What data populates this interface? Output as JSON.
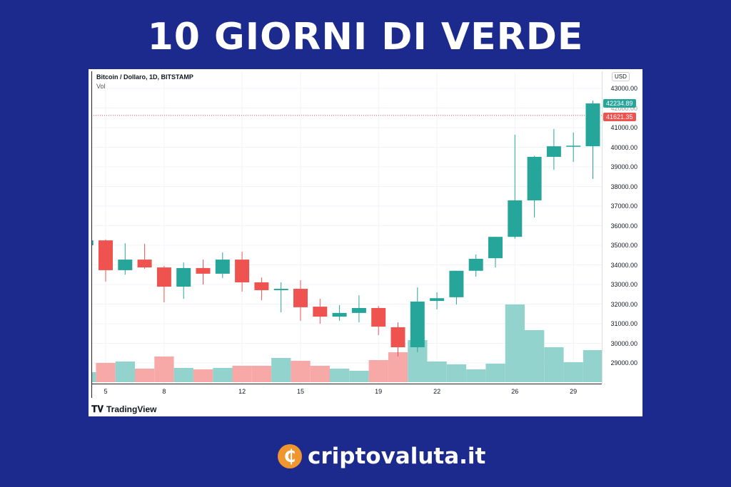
{
  "title": "10 GIORNI DI VERDE",
  "chart_data": {
    "type": "candlestick",
    "title": "Bitcoin / Dollaro, 1D, BITSTAMP",
    "volume_label": "Vol",
    "currency": "USD",
    "colors": {
      "up": "#26a69a",
      "down": "#ef5350",
      "up_vol": "#92d4cd",
      "down_vol": "#f7a9a7"
    },
    "ylim": [
      28000,
      43500
    ],
    "y_ticks": [
      "29000.00",
      "30000.00",
      "31000.00",
      "32000.00",
      "33000.00",
      "34000.00",
      "35000.00",
      "36000.00",
      "37000.00",
      "38000.00",
      "39000.00",
      "40000.00",
      "41000.00",
      "43000.00"
    ],
    "x_ticks": [
      {
        "day": 5,
        "label": "5"
      },
      {
        "day": 8,
        "label": "8"
      },
      {
        "day": 12,
        "label": "12"
      },
      {
        "day": 15,
        "label": "15"
      },
      {
        "day": 19,
        "label": "19"
      },
      {
        "day": 22,
        "label": "22"
      },
      {
        "day": 26,
        "label": "26"
      },
      {
        "day": 29,
        "label": "29"
      }
    ],
    "last_price": "42234.89",
    "hidden_tick": "42000.00",
    "price_line": "41621.35",
    "price_line_value": 41621.35,
    "candles": [
      {
        "day": 4,
        "o": 35000,
        "h": 35300,
        "c": 35250,
        "l": 34900,
        "v": 14
      },
      {
        "day": 5,
        "o": 35250,
        "h": 35300,
        "c": 33730,
        "l": 33150,
        "v": 27
      },
      {
        "day": 6,
        "o": 33730,
        "h": 35100,
        "c": 34270,
        "l": 33500,
        "v": 29
      },
      {
        "day": 7,
        "o": 34270,
        "h": 35070,
        "c": 33870,
        "l": 33800,
        "v": 19
      },
      {
        "day": 8,
        "o": 33870,
        "h": 33950,
        "c": 32890,
        "l": 32090,
        "v": 36
      },
      {
        "day": 9,
        "o": 32890,
        "h": 34130,
        "c": 33840,
        "l": 32270,
        "v": 20
      },
      {
        "day": 10,
        "o": 33840,
        "h": 34270,
        "c": 33550,
        "l": 33000,
        "v": 18
      },
      {
        "day": 11,
        "o": 33550,
        "h": 34640,
        "c": 34270,
        "l": 33330,
        "v": 20
      },
      {
        "day": 12,
        "o": 34270,
        "h": 34670,
        "c": 33110,
        "l": 32640,
        "v": 23
      },
      {
        "day": 13,
        "o": 33110,
        "h": 33360,
        "c": 32710,
        "l": 32200,
        "v": 23
      },
      {
        "day": 14,
        "o": 32710,
        "h": 33110,
        "c": 32780,
        "l": 31580,
        "v": 34
      },
      {
        "day": 15,
        "o": 32780,
        "h": 33220,
        "c": 31840,
        "l": 31150,
        "v": 30
      },
      {
        "day": 16,
        "o": 31870,
        "h": 32270,
        "c": 31360,
        "l": 31000,
        "v": 23
      },
      {
        "day": 17,
        "o": 31360,
        "h": 31950,
        "c": 31550,
        "l": 31150,
        "v": 19
      },
      {
        "day": 18,
        "o": 31550,
        "h": 32450,
        "c": 31800,
        "l": 31070,
        "v": 16
      },
      {
        "day": 19,
        "o": 31800,
        "h": 31900,
        "c": 30850,
        "l": 30420,
        "v": 31
      },
      {
        "day": 20,
        "o": 30820,
        "h": 31070,
        "c": 29800,
        "l": 29330,
        "v": 42
      },
      {
        "day": 21,
        "o": 29800,
        "h": 32850,
        "c": 32130,
        "l": 29550,
        "v": 59
      },
      {
        "day": 22,
        "o": 32160,
        "h": 32600,
        "c": 32300,
        "l": 31730,
        "v": 29
      },
      {
        "day": 23,
        "o": 32350,
        "h": 33700,
        "c": 33700,
        "l": 31980,
        "v": 25
      },
      {
        "day": 24,
        "o": 33700,
        "h": 34530,
        "c": 34310,
        "l": 33400,
        "v": 18
      },
      {
        "day": 25,
        "o": 34340,
        "h": 35430,
        "c": 35430,
        "l": 33870,
        "v": 26
      },
      {
        "day": 26,
        "o": 35430,
        "h": 40640,
        "c": 37290,
        "l": 35330,
        "v": 109
      },
      {
        "day": 27,
        "o": 37290,
        "h": 39560,
        "c": 39510,
        "l": 36420,
        "v": 73
      },
      {
        "day": 28,
        "o": 39510,
        "h": 40930,
        "c": 40050,
        "l": 38850,
        "v": 49
      },
      {
        "day": 29,
        "o": 40050,
        "h": 40750,
        "c": 40080,
        "l": 39250,
        "v": 28
      },
      {
        "day": 30,
        "o": 40050,
        "h": 42380,
        "c": 42234.89,
        "l": 38380,
        "v": 45
      }
    ]
  },
  "footer": {
    "tradingview": "TradingView",
    "brand": "criptovaluta.it"
  }
}
